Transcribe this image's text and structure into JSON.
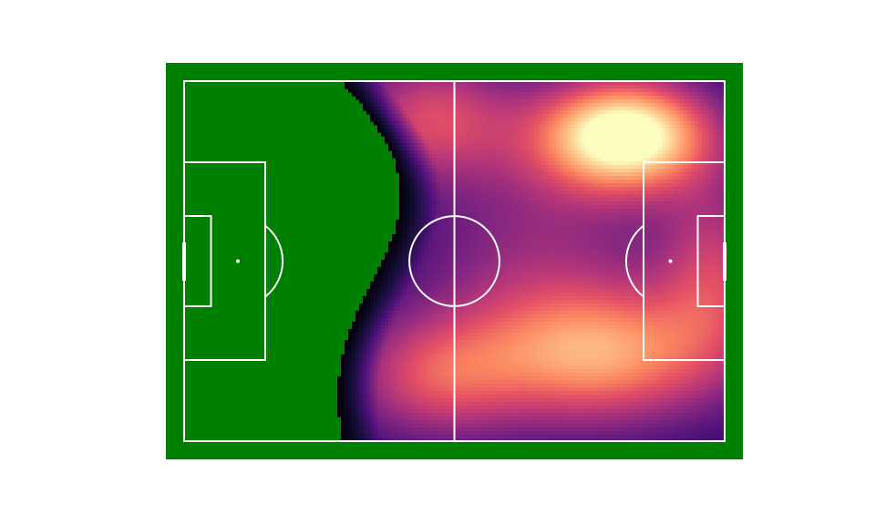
{
  "chart_data": {
    "type": "heatmap",
    "subtype": "kde-on-football-pitch",
    "pitch": {
      "length": 120,
      "width": 80,
      "grass_color": "#008000",
      "line_color": "#ffffff"
    },
    "colormap": "magma",
    "colorbar": false,
    "hotspots": [
      {
        "x": 98,
        "y": 12,
        "intensity": 1.0
      },
      {
        "x": 94,
        "y": 61,
        "intensity": 0.62
      },
      {
        "x": 55,
        "y": 8,
        "intensity": 0.45
      },
      {
        "x": 55,
        "y": 66,
        "intensity": 0.42
      },
      {
        "x": 118,
        "y": 42,
        "intensity": 0.38
      },
      {
        "x": 78,
        "y": 40,
        "intensity": 0.28
      }
    ],
    "title": "",
    "xlabel": "",
    "ylabel": ""
  }
}
